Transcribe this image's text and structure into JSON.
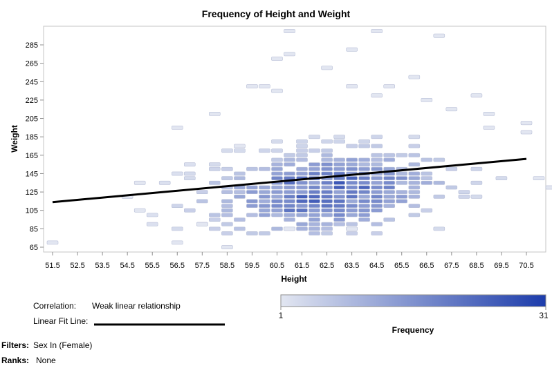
{
  "chart_data": {
    "type": "heatmap",
    "title": "Frequency of Height and Weight",
    "xlabel": "Height",
    "ylabel": "Weight",
    "x_ticks": [
      51.5,
      52.5,
      53.5,
      54.5,
      55.5,
      56.5,
      57.5,
      58.5,
      59.5,
      60.5,
      61.5,
      62.5,
      63.5,
      64.5,
      65.5,
      66.5,
      67.5,
      68.5,
      69.5,
      70.5
    ],
    "y_ticks": [
      65,
      85,
      105,
      125,
      145,
      165,
      185,
      205,
      225,
      245,
      265,
      285
    ],
    "xlim": [
      51.0,
      71.5
    ],
    "ylim": [
      60,
      300
    ],
    "bin_width": 0.5,
    "bin_height": 5,
    "frequency_range": [
      1,
      31
    ],
    "color_low": "#e2e6f1",
    "color_high": "#1c3cab",
    "fit_line": {
      "x": [
        51.5,
        70.5
      ],
      "y": [
        114,
        161
      ],
      "color": "#000000"
    },
    "outlier_bins": [
      {
        "x": 51.5,
        "y": 70
      },
      {
        "x": 56.5,
        "y": 70
      },
      {
        "x": 56.5,
        "y": 195
      },
      {
        "x": 58.5,
        "y": 65
      },
      {
        "x": 60.5,
        "y": 270
      },
      {
        "x": 60.5,
        "y": 235
      },
      {
        "x": 61.0,
        "y": 300
      },
      {
        "x": 61.0,
        "y": 275
      },
      {
        "x": 62.5,
        "y": 260
      },
      {
        "x": 63.5,
        "y": 280
      },
      {
        "x": 64.5,
        "y": 300
      },
      {
        "x": 67.0,
        "y": 295
      },
      {
        "x": 66.0,
        "y": 250
      },
      {
        "x": 68.5,
        "y": 230
      },
      {
        "x": 70.5,
        "y": 200
      },
      {
        "x": 71.5,
        "y": 130
      },
      {
        "x": 54.5,
        "y": 120
      },
      {
        "x": 55.0,
        "y": 105
      },
      {
        "x": 55.0,
        "y": 135
      },
      {
        "x": 58.0,
        "y": 210
      },
      {
        "x": 59.0,
        "y": 175
      },
      {
        "x": 59.5,
        "y": 240
      },
      {
        "x": 60.0,
        "y": 240
      },
      {
        "x": 63.5,
        "y": 240
      },
      {
        "x": 64.5,
        "y": 230
      },
      {
        "x": 66.5,
        "y": 225
      },
      {
        "x": 67.5,
        "y": 215
      },
      {
        "x": 69.0,
        "y": 210
      },
      {
        "x": 70.5,
        "y": 190
      },
      {
        "x": 71.0,
        "y": 140
      },
      {
        "x": 57.5,
        "y": 90
      },
      {
        "x": 63.5,
        "y": 85
      },
      {
        "x": 61.0,
        "y": 85
      },
      {
        "x": 69.0,
        "y": 195
      },
      {
        "x": 65.0,
        "y": 240
      }
    ]
  },
  "legend": {
    "correlation_label": "Correlation:",
    "correlation_value": "Weak linear relationship",
    "fit_label": "Linear Fit Line:",
    "gradient_min": "1",
    "gradient_max": "31",
    "gradient_title": "Frequency"
  },
  "footer": {
    "filters_label": "Filters:",
    "filters_value": "Sex In (Female)",
    "ranks_label": "Ranks:",
    "ranks_value": "None"
  }
}
